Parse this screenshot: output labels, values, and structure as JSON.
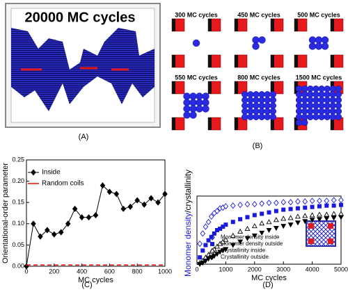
{
  "panel_a": {
    "title": "20000 MC cycles"
  },
  "panel_b": {
    "labels": [
      "300 MC cycles",
      "450 MC cycles",
      "500 MC cycles",
      "550 MC cycles",
      "800 MC cycles",
      "1500 MC cycles"
    ]
  },
  "panel_labels": [
    "(A)",
    "(B)",
    "(C)",
    "(D)"
  ],
  "chart_data": [
    {
      "type": "line",
      "xlabel": "MC cycles",
      "ylabel": "Orientational-order parameter",
      "x": [
        0,
        50,
        100,
        150,
        200,
        250,
        300,
        350,
        400,
        450,
        500,
        550,
        600,
        650,
        700,
        750,
        800,
        850,
        900,
        950,
        1000
      ],
      "series": [
        {
          "name": "Inside",
          "color": "#000000",
          "marker": "diamond",
          "line": true,
          "values": [
            0,
            0.1,
            0.07,
            0.085,
            0.075,
            0.08,
            0.1,
            0.135,
            0.115,
            0.115,
            0.12,
            0.19,
            0.175,
            0.17,
            0.135,
            0.14,
            0.155,
            0.145,
            0.16,
            0.15,
            0.17
          ]
        },
        {
          "name": "Random coils",
          "color": "#e8191c",
          "line": true,
          "dash": true,
          "values": [
            0.003,
            0.003,
            0.003,
            0.003,
            0.003,
            0.003,
            0.003,
            0.003,
            0.003,
            0.003,
            0.003,
            0.003,
            0.003,
            0.003,
            0.003,
            0.003,
            0.003,
            0.003,
            0.003,
            0.003,
            0.003
          ]
        }
      ],
      "xlim": [
        0,
        1000
      ],
      "ylim": [
        0,
        0.25
      ],
      "xticks": [
        0,
        200,
        400,
        600,
        800,
        1000
      ],
      "yticks": [
        {
          "value": 0,
          "label": "0.00"
        },
        {
          "value": 0.05,
          "label": "0.05"
        },
        {
          "value": 0.1,
          "label": "0.10"
        },
        {
          "value": 0.15,
          "label": "0.15"
        },
        {
          "value": 0.2,
          "label": "0.20"
        },
        {
          "value": 0.25,
          "label": "0.25"
        }
      ],
      "legend": "upper left"
    },
    {
      "type": "scatter",
      "xlabel": "MC cycles",
      "ylabel": [
        {
          "text": "Monomer density",
          "color": "#1a1adc"
        },
        {
          "text": "/crystallinity",
          "color": "#000000"
        }
      ],
      "x": [
        100,
        200,
        300,
        400,
        500,
        600,
        700,
        800,
        900,
        1000,
        1250,
        1500,
        1750,
        2000,
        2250,
        2500,
        2750,
        3000,
        3250,
        3500,
        3750,
        4000,
        4250,
        4500,
        4750,
        5000
      ],
      "series": [
        {
          "name": "Monomer density inside",
          "color": "#1a1adc",
          "marker": "diamond-open",
          "values": [
            0.3,
            0.45,
            0.55,
            0.62,
            0.7,
            0.75,
            0.78,
            0.82,
            0.83,
            0.85,
            0.86,
            0.87,
            0.88,
            0.88,
            0.89,
            0.9,
            0.9,
            0.91,
            0.91,
            0.92,
            0.92,
            0.93,
            0.93,
            0.93,
            0.94,
            0.94
          ]
        },
        {
          "name": "Monomer density outside",
          "color": "#1a1adc",
          "marker": "square",
          "values": [
            0.1,
            0.2,
            0.28,
            0.35,
            0.4,
            0.45,
            0.5,
            0.52,
            0.55,
            0.58,
            0.62,
            0.66,
            0.69,
            0.72,
            0.74,
            0.76,
            0.78,
            0.8,
            0.81,
            0.82,
            0.83,
            0.84,
            0.85,
            0.86,
            0.86,
            0.87
          ]
        },
        {
          "name": "Crystallinity inside",
          "color": "#000000",
          "marker": "triangle-open",
          "values": [
            0.02,
            0.05,
            0.1,
            0.14,
            0.18,
            0.22,
            0.26,
            0.3,
            0.33,
            0.36,
            0.42,
            0.48,
            0.52,
            0.56,
            0.6,
            0.62,
            0.65,
            0.67,
            0.68,
            0.7,
            0.71,
            0.72,
            0.73,
            0.73,
            0.74,
            0.74
          ]
        },
        {
          "name": "Crystallinity outside",
          "color": "#000000",
          "marker": "triangle-down",
          "values": [
            0,
            0.02,
            0.05,
            0.08,
            0.1,
            0.12,
            0.15,
            0.18,
            0.2,
            0.22,
            0.28,
            0.33,
            0.38,
            0.42,
            0.46,
            0.5,
            0.53,
            0.56,
            0.58,
            0.61,
            0.63,
            0.65,
            0.66,
            0.67,
            0.68,
            0.69
          ]
        }
      ],
      "xlim": [
        0,
        5000
      ],
      "ylim": [
        0,
        1
      ],
      "xticks": [
        0,
        1000,
        2000,
        3000,
        4000,
        5000
      ],
      "legend": "lower left"
    }
  ]
}
